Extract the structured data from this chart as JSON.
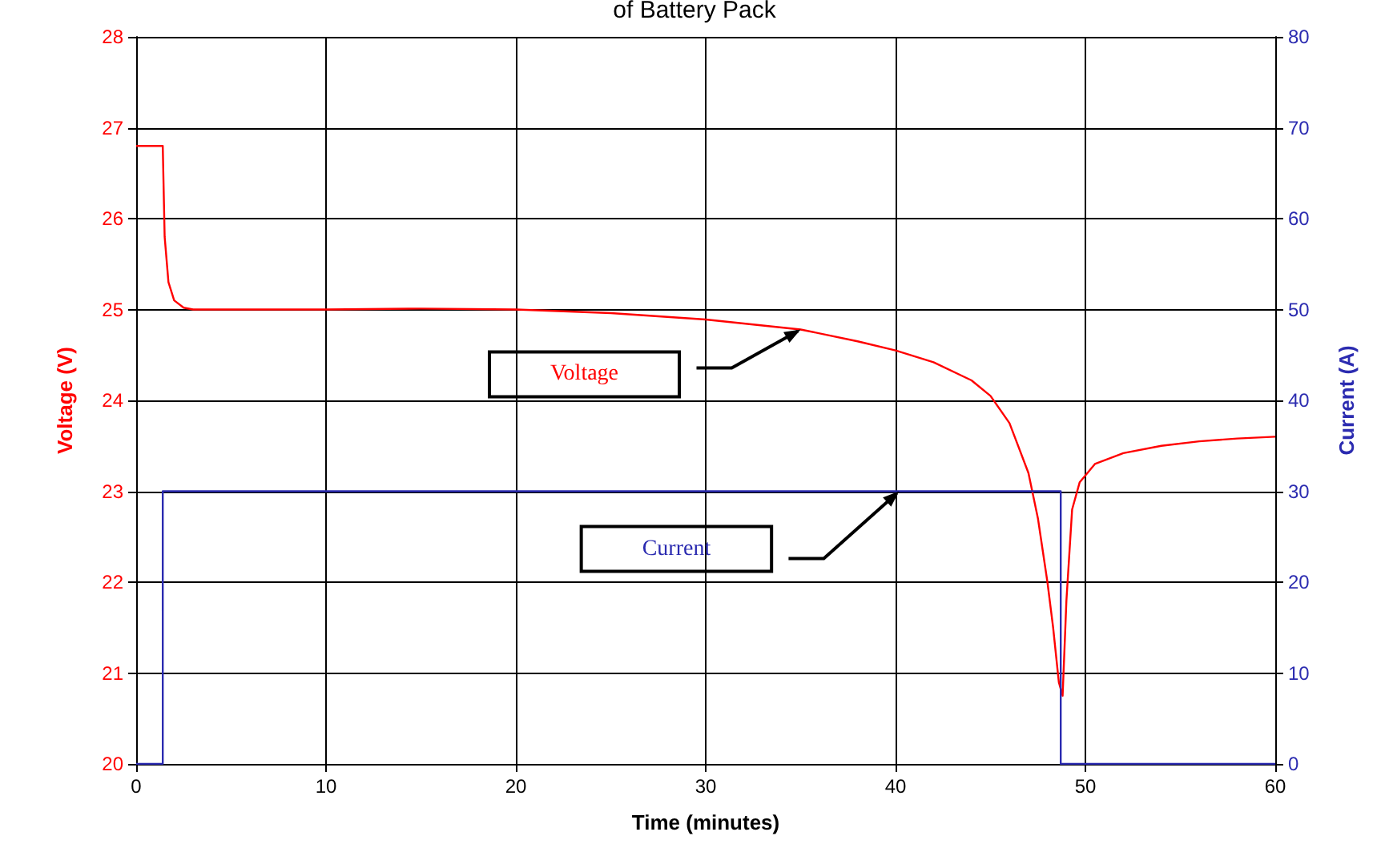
{
  "chart_data": {
    "type": "line",
    "title": "of Battery Pack",
    "xlabel": "Time (minutes)",
    "ylabel": "Voltage (V)",
    "y2label": "Current (A)",
    "xlim": [
      0,
      60
    ],
    "xticks": [
      0,
      10,
      20,
      30,
      40,
      50,
      60
    ],
    "ylim": [
      20,
      28
    ],
    "yticks": [
      20,
      21,
      22,
      23,
      24,
      25,
      26,
      27,
      28
    ],
    "y2lim": [
      0,
      80
    ],
    "y2ticks": [
      0,
      10,
      20,
      30,
      40,
      50,
      60,
      70,
      80
    ],
    "grid": true,
    "marker": "none",
    "series": [
      {
        "name": "Voltage",
        "color": "#ff0000",
        "x": [
          0,
          1.4,
          1.5,
          1.7,
          2,
          2.5,
          3,
          5,
          10,
          15,
          20,
          25,
          30,
          35,
          38,
          40,
          42,
          44,
          45,
          46,
          47,
          47.5,
          48,
          48.3,
          48.6,
          48.8,
          49,
          49.3,
          49.7,
          50.5,
          52,
          54,
          56,
          58,
          60
        ],
        "values": [
          26.8,
          26.8,
          25.8,
          25.3,
          25.1,
          25.02,
          25.0,
          25.0,
          25.0,
          25.01,
          25.0,
          24.96,
          24.89,
          24.78,
          24.65,
          24.55,
          24.42,
          24.22,
          24.05,
          23.75,
          23.2,
          22.7,
          22.0,
          21.5,
          20.9,
          20.75,
          21.8,
          22.8,
          23.1,
          23.3,
          23.42,
          23.5,
          23.55,
          23.58,
          23.6
        ]
      },
      {
        "name": "Current",
        "color": "#2b2bb0",
        "axis": "y2",
        "x": [
          0,
          1.4,
          1.4,
          48.7,
          48.7,
          60
        ],
        "values": [
          0,
          0,
          30,
          30,
          0,
          0
        ]
      }
    ]
  }
}
